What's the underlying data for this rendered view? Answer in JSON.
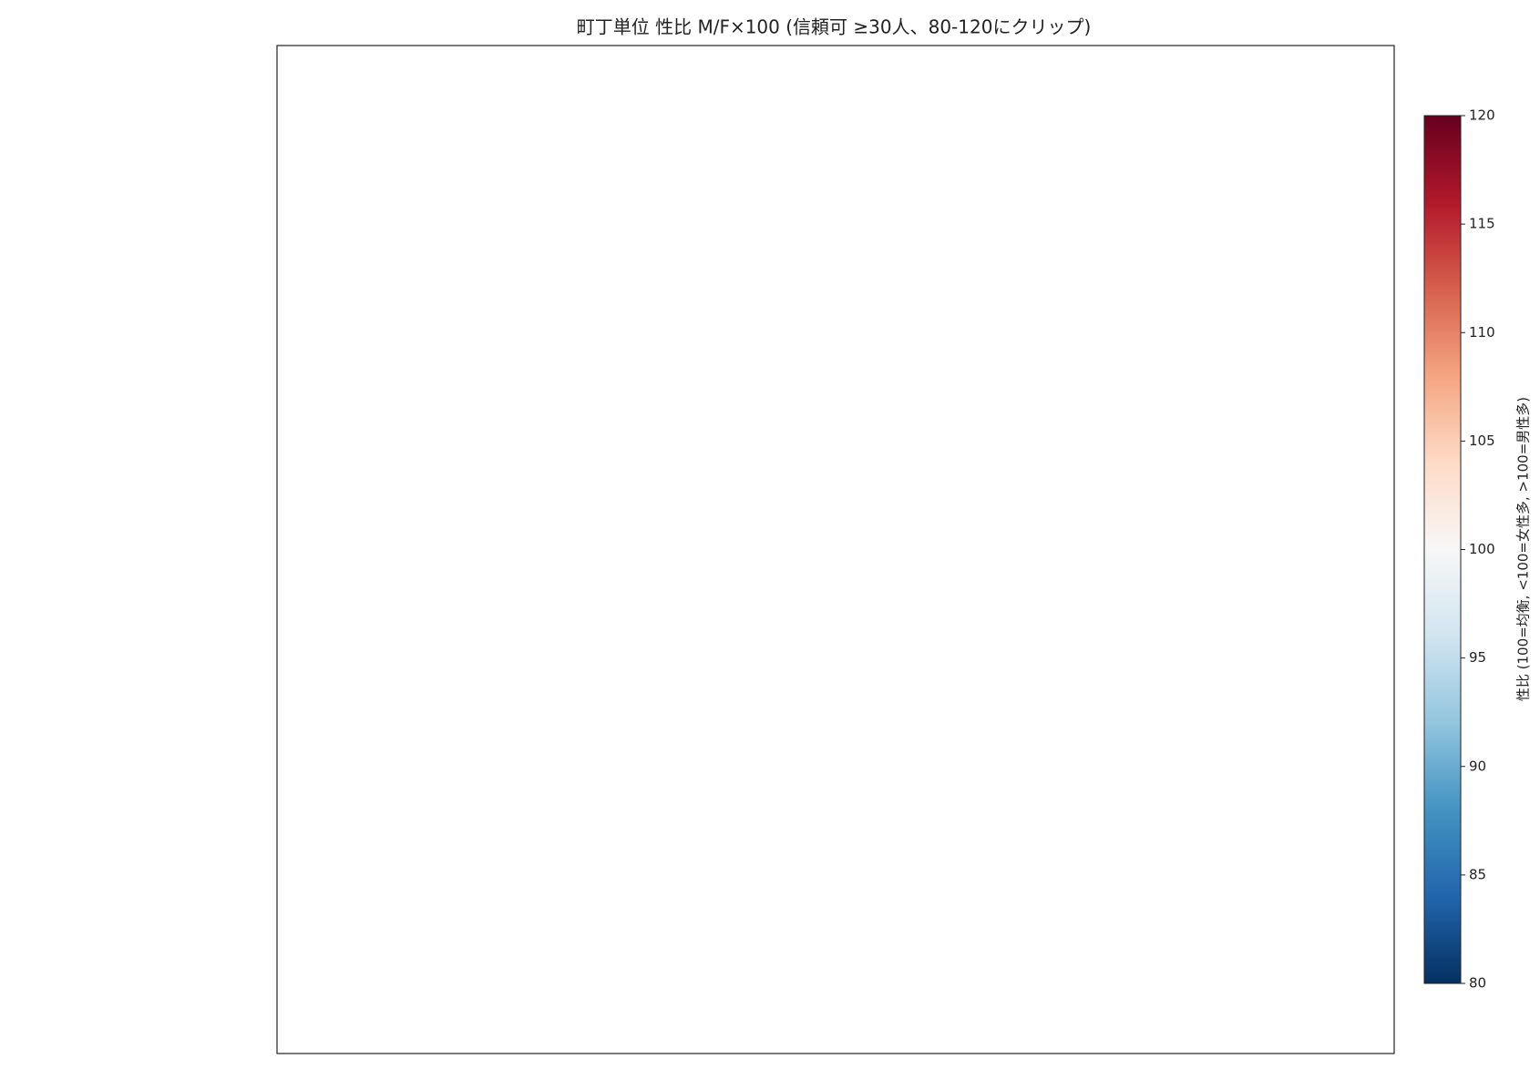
{
  "title": "町丁単位 性比 M/F×100 (信頼可 ≥30人、80-120にクリップ)",
  "colorbar": {
    "label": "性比 (100=均衡, <100=女性多, >100=男性多)",
    "lim": [
      80,
      120
    ],
    "ticks": [
      80,
      85,
      90,
      95,
      100,
      105,
      110,
      115,
      120
    ],
    "colormap": [
      "#053061",
      "#2166ac",
      "#4393c3",
      "#92c5de",
      "#d1e5f0",
      "#f7f7f7",
      "#fddbc7",
      "#f4a582",
      "#d6604d",
      "#b2182b",
      "#67001f"
    ]
  }
}
